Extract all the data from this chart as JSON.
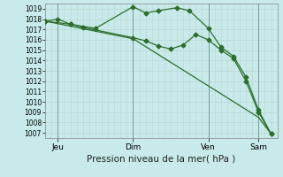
{
  "background_color": "#c8eaea",
  "grid_color": "#b8d8d0",
  "line_color": "#2d6e2d",
  "xlabel": "Pression niveau de la mer( hPa )",
  "ylim": [
    1006.5,
    1019.5
  ],
  "yticks": [
    1007,
    1008,
    1009,
    1010,
    1011,
    1012,
    1013,
    1014,
    1015,
    1016,
    1017,
    1018,
    1019
  ],
  "xtick_labels": [
    "Jeu",
    "Dim",
    "Ven",
    "Sam"
  ],
  "xtick_positions": [
    2,
    14,
    26,
    34
  ],
  "xlim": [
    0,
    37
  ],
  "vline_positions": [
    2,
    14,
    26,
    34
  ],
  "series1_x": [
    0,
    2,
    4,
    6,
    14,
    16,
    18,
    20,
    22,
    24,
    26,
    28,
    30,
    32,
    34,
    36
  ],
  "series1_y": [
    1017.8,
    1018.0,
    1017.5,
    1017.2,
    1016.2,
    1015.9,
    1015.4,
    1015.1,
    1015.5,
    1016.5,
    1016.0,
    1015.0,
    1014.2,
    1012.0,
    1009.0,
    1006.9
  ],
  "series2_x": [
    0,
    4,
    8,
    14,
    16,
    18,
    21,
    23,
    26,
    28,
    30,
    32,
    34,
    36
  ],
  "series2_y": [
    1017.8,
    1017.5,
    1017.1,
    1019.2,
    1018.6,
    1018.8,
    1019.1,
    1018.8,
    1017.1,
    1015.3,
    1014.4,
    1012.4,
    1009.2,
    1006.9
  ],
  "series3_x": [
    0,
    14,
    34,
    36
  ],
  "series3_y": [
    1017.8,
    1016.1,
    1008.5,
    1006.9
  ],
  "marker_size": 2.5,
  "line_width": 0.9,
  "ytick_fontsize": 5.5,
  "xtick_fontsize": 6.5,
  "xlabel_fontsize": 7.5
}
